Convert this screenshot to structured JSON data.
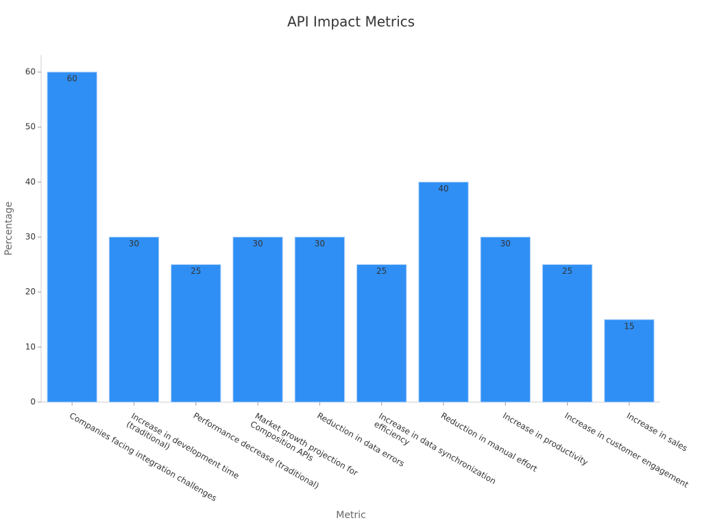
{
  "chart_data": {
    "type": "bar",
    "title": "API Impact Metrics",
    "x_label": "Metric",
    "y_label": "Percentage",
    "categories": [
      "Companies facing integration challenges",
      "Increase in development time\n(traditional)",
      "Performance decrease (traditional)",
      "Market growth projection for\nComposition APIs",
      "Reduction in data errors",
      "Increase in data synchronization\nefficiency",
      "Reduction in manual effort",
      "Increase in productivity",
      "Increase in customer engagement",
      "Increase in sales"
    ],
    "values": [
      60,
      30,
      25,
      30,
      30,
      25,
      40,
      30,
      25,
      15
    ],
    "color": "#2f8ff5",
    "ylim": [
      0,
      63
    ],
    "yticks": [
      0,
      10,
      20,
      30,
      40,
      50,
      60
    ],
    "grid": false
  }
}
